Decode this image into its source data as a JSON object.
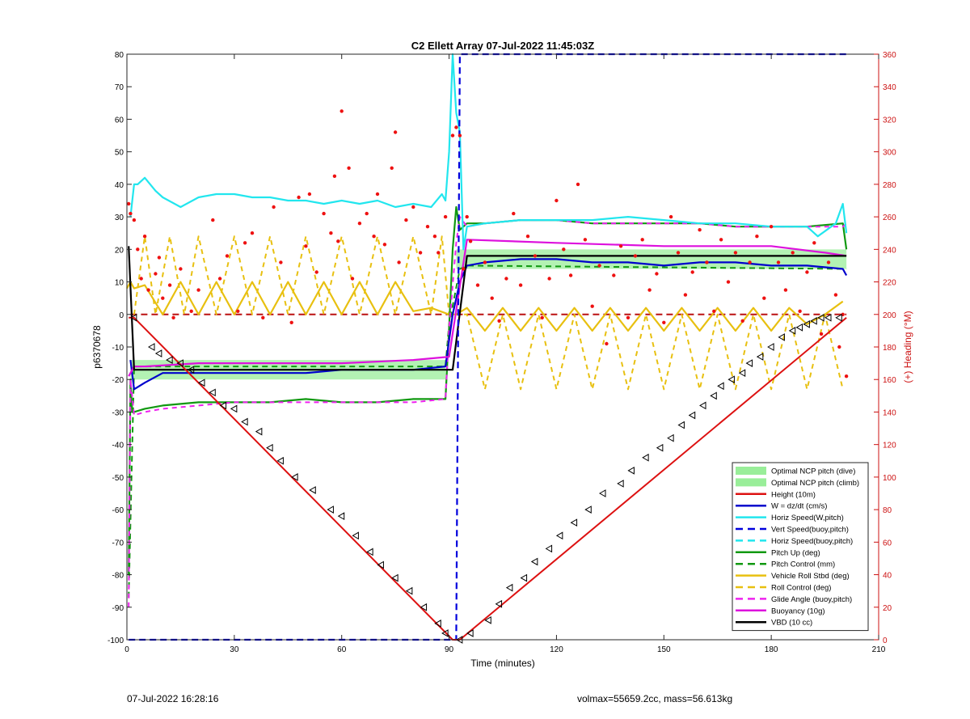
{
  "chart_data": {
    "type": "line",
    "title": "C2 Ellett Array 07-Jul-2022 11:45:03Z",
    "xlabel": "Time (minutes)",
    "ylabel": "p6370678",
    "y2label": "(+) Heading (°M)",
    "xlim": [
      0,
      210
    ],
    "ylim": [
      -100,
      80
    ],
    "y2lim": [
      0,
      360
    ],
    "xticks": [
      0,
      30,
      60,
      90,
      120,
      150,
      180,
      210
    ],
    "yticks": [
      80,
      70,
      60,
      50,
      40,
      30,
      20,
      10,
      0,
      -10,
      -20,
      -30,
      -40,
      -50,
      -60,
      -70,
      -80,
      -90,
      -100
    ],
    "y2ticks": [
      360,
      340,
      320,
      300,
      280,
      260,
      240,
      220,
      200,
      180,
      160,
      140,
      120,
      100,
      80,
      60,
      40,
      20,
      0
    ],
    "grid": false,
    "legend_position": "lower-right",
    "colors": {
      "height": "#dd1111",
      "w": "#0000cc",
      "horiz": "#22e6ee",
      "vert": "#0000dd",
      "pitch": "#119911",
      "roll": "#e8c010",
      "glide": "#ee22ee",
      "buoy": "#dd11dd",
      "vbd": "#000000",
      "ncp": "#99ee99",
      "heading": "#ee1111",
      "axis_right": "#cc1111"
    },
    "legend": [
      {
        "label": "Optimal NCP pitch (dive)",
        "kind": "patch",
        "color": "#99ee99"
      },
      {
        "label": "Optimal NCP pitch (climb)",
        "kind": "patch",
        "color": "#99ee99"
      },
      {
        "label": "Height (10m)",
        "kind": "solid",
        "color": "#dd1111"
      },
      {
        "label": "W = dz/dt (cm/s)",
        "kind": "solid",
        "color": "#0000cc"
      },
      {
        "label": "Horiz Speed(W,pitch)",
        "kind": "solid",
        "color": "#22e6ee"
      },
      {
        "label": "Vert Speed(buoy,pitch)",
        "kind": "dashed",
        "color": "#0000dd"
      },
      {
        "label": "Horiz Speed(buoy,pitch)",
        "kind": "dashed",
        "color": "#22e6ee"
      },
      {
        "label": "Pitch Up (deg)",
        "kind": "solid",
        "color": "#119911"
      },
      {
        "label": "Pitch Control (mm)",
        "kind": "dashed",
        "color": "#119911"
      },
      {
        "label": "Vehicle Roll Stbd (deg)",
        "kind": "solid",
        "color": "#e8c010"
      },
      {
        "label": "Roll Control (deg)",
        "kind": "dashed",
        "color": "#e8c010"
      },
      {
        "label": "Glide Angle (buoy,pitch)",
        "kind": "dashed",
        "color": "#ee22ee"
      },
      {
        "label": "Buoyancy (10g)",
        "kind": "solid",
        "color": "#dd11dd"
      },
      {
        "label": "VBD (10 cc)",
        "kind": "solid",
        "color": "#000000"
      }
    ],
    "series": {
      "height": {
        "x": [
          0.5,
          2,
          91,
          93,
          201
        ],
        "y": [
          -1,
          -1,
          -100,
          -100,
          -1
        ]
      },
      "height_markers": {
        "x": [
          2,
          7,
          9,
          12,
          15,
          18,
          21,
          24,
          27,
          30,
          33,
          37,
          40,
          43,
          47,
          52,
          57,
          60,
          64,
          68,
          71,
          75,
          79,
          83,
          87,
          89,
          93,
          96,
          101,
          104,
          107,
          111,
          114,
          118,
          121,
          125,
          129,
          133,
          138,
          141,
          145,
          149,
          152,
          155,
          158,
          161,
          164,
          166,
          169,
          172,
          174,
          177,
          180,
          183,
          186,
          188,
          190,
          192,
          194,
          196,
          199
        ],
        "y": [
          -1,
          -10,
          -12,
          -14,
          -15,
          -17,
          -21,
          -24,
          -28,
          -29,
          -33,
          -36,
          -41,
          -45,
          -50,
          -54,
          -60,
          -62,
          -68,
          -73,
          -77,
          -81,
          -85,
          -90,
          -95,
          -98,
          -100,
          -98,
          -94,
          -89,
          -84,
          -81,
          -76,
          -72,
          -68,
          -64,
          -60,
          -55,
          -52,
          -48,
          -44,
          -41,
          -38,
          -34,
          -31,
          -28,
          -25,
          -22,
          -20,
          -18,
          -15,
          -13,
          -10,
          -7,
          -5,
          -4,
          -3,
          -2,
          -1,
          -1,
          -1
        ]
      },
      "w": {
        "x": [
          1,
          2,
          5,
          10,
          20,
          30,
          40,
          50,
          60,
          70,
          80,
          89,
          91,
          93,
          95,
          100,
          110,
          120,
          130,
          140,
          150,
          160,
          170,
          180,
          190,
          200,
          201
        ],
        "y": [
          -14,
          -23,
          -21,
          -18,
          -18,
          -18,
          -18,
          -18,
          -17,
          -17,
          -17,
          -16,
          0,
          10,
          15,
          16,
          17,
          17,
          16,
          16,
          15,
          16,
          16,
          15,
          15,
          14,
          12
        ]
      },
      "horiz_speed": {
        "x": [
          1,
          2,
          3,
          5,
          8,
          10,
          15,
          20,
          25,
          30,
          35,
          40,
          45,
          50,
          55,
          60,
          65,
          70,
          75,
          80,
          85,
          88,
          89,
          90,
          91,
          92,
          93,
          94,
          95,
          100,
          110,
          120,
          130,
          140,
          150,
          160,
          170,
          180,
          190,
          193,
          198,
          200,
          201
        ],
        "y": [
          30,
          40,
          40,
          42,
          38,
          36,
          33,
          36,
          37,
          37,
          36,
          36,
          35,
          35,
          34,
          35,
          34,
          35,
          33,
          34,
          33,
          37,
          35,
          50,
          80,
          62,
          56,
          20,
          27,
          28,
          29,
          29,
          29,
          30,
          29,
          28,
          28,
          27,
          27,
          24,
          28,
          34,
          25
        ]
      },
      "vert_speed": {
        "x": [
          0.5,
          92,
          93,
          201
        ],
        "y": [
          -100,
          -100,
          80,
          80
        ]
      },
      "pitch_up": {
        "x": [
          0.5,
          1,
          1.5,
          2,
          5,
          10,
          20,
          30,
          40,
          50,
          60,
          70,
          80,
          89,
          90,
          91,
          92,
          93,
          95,
          100,
          110,
          120,
          130,
          140,
          150,
          160,
          170,
          180,
          190,
          200,
          201
        ],
        "y": [
          -80,
          -20,
          -30,
          -30,
          -29,
          -28,
          -27,
          -27,
          -27,
          -26,
          -27,
          -27,
          -26,
          -26,
          -4,
          20,
          33,
          26,
          28,
          28,
          29,
          29,
          28,
          28,
          28,
          28,
          27,
          27,
          27,
          28,
          20
        ]
      },
      "pitch_control": {
        "x": [
          0.5,
          2,
          89,
          90,
          93,
          95,
          201
        ],
        "y": [
          -87,
          -16,
          -16,
          -3,
          14,
          15,
          14
        ]
      },
      "roll_stbd": {
        "x": [
          0,
          1,
          2,
          5,
          10,
          15,
          20,
          25,
          30,
          35,
          40,
          45,
          50,
          55,
          60,
          65,
          70,
          75,
          80,
          85,
          90,
          92,
          95,
          100,
          105,
          110,
          115,
          120,
          125,
          130,
          135,
          140,
          145,
          150,
          155,
          160,
          165,
          170,
          175,
          180,
          185,
          190,
          195,
          200
        ],
        "y": [
          8,
          10,
          8,
          9,
          0,
          10,
          0,
          10,
          0,
          10,
          0,
          10,
          0,
          10,
          0,
          10,
          0,
          10,
          1,
          2,
          0,
          0,
          2,
          -5,
          2,
          -5,
          2,
          -5,
          2,
          -5,
          2,
          -5,
          2,
          -5,
          2,
          -5,
          2,
          -5,
          2,
          -5,
          2,
          -3,
          0,
          4
        ]
      },
      "roll_control": {
        "x": [
          2,
          5,
          8,
          12,
          16,
          20,
          25,
          30,
          35,
          40,
          45,
          50,
          55,
          60,
          65,
          70,
          75,
          80,
          85,
          88,
          90,
          95,
          100,
          105,
          110,
          115,
          120,
          125,
          130,
          135,
          140,
          145,
          150,
          155,
          160,
          165,
          170,
          175,
          180,
          185,
          190,
          195,
          200
        ],
        "y": [
          0,
          24,
          0,
          24,
          0,
          24,
          0,
          24,
          0,
          24,
          0,
          24,
          0,
          24,
          0,
          24,
          0,
          24,
          0,
          24,
          0,
          0,
          -23,
          0,
          -23,
          0,
          -23,
          0,
          -23,
          0,
          -23,
          0,
          -23,
          0,
          -23,
          0,
          -23,
          0,
          -23,
          0,
          -23,
          0,
          -23
        ]
      },
      "glide_angle": {
        "x": [
          0.5,
          1,
          2,
          5,
          10,
          20,
          30,
          40,
          50,
          60,
          70,
          80,
          89,
          90,
          92,
          93,
          95,
          100,
          110,
          120,
          130,
          140,
          150,
          160,
          170,
          180,
          190,
          200,
          201
        ],
        "y": [
          -90,
          -20,
          -31,
          -30,
          -29,
          -28,
          -27,
          -27,
          -27,
          -27,
          -27,
          -27,
          -26,
          -4,
          22,
          30,
          27,
          28,
          29,
          29,
          28,
          28,
          28,
          28,
          27,
          27,
          27,
          27,
          28
        ]
      },
      "buoyancy": {
        "x": [
          0.5,
          2,
          5,
          20,
          40,
          60,
          80,
          90,
          95,
          120,
          150,
          180,
          195,
          201
        ],
        "y": [
          -19,
          -16,
          -16,
          -15,
          -15,
          -15,
          -14,
          -13,
          23,
          22,
          21,
          21,
          19,
          18
        ]
      },
      "vbd": {
        "x": [
          0.5,
          2,
          89,
          91,
          95,
          201
        ],
        "y": [
          21,
          -17,
          -17,
          -17,
          18,
          18
        ]
      },
      "ncp_dive": {
        "x": [
          1,
          89
        ],
        "y_low": [
          -20,
          -20
        ],
        "y_high": [
          -14,
          -14
        ]
      },
      "ncp_climb": {
        "x": [
          92,
          201
        ],
        "y_low": [
          14,
          14
        ],
        "y_high": [
          20,
          20
        ]
      },
      "heading_points": {
        "x": [
          0.5,
          1,
          2,
          3,
          4,
          5,
          6,
          8,
          9,
          10,
          12,
          13,
          15,
          18,
          20,
          24,
          26,
          28,
          31,
          33,
          35,
          38,
          41,
          43,
          46,
          48,
          50,
          51,
          53,
          55,
          57,
          58,
          59,
          60,
          62,
          63,
          65,
          67,
          69,
          70,
          72,
          74,
          75,
          76,
          78,
          80,
          82,
          84,
          86,
          87,
          89,
          91,
          92,
          93,
          94,
          95,
          96,
          98,
          100,
          102,
          104,
          106,
          108,
          110,
          112,
          114,
          116,
          118,
          120,
          122,
          124,
          126,
          128,
          130,
          132,
          134,
          136,
          138,
          140,
          142,
          144,
          146,
          148,
          150,
          152,
          154,
          156,
          158,
          160,
          162,
          164,
          166,
          168,
          170,
          172,
          174,
          176,
          178,
          180,
          182,
          184,
          186,
          188,
          190,
          192,
          194,
          196,
          198,
          199,
          200,
          201
        ],
        "y": [
          268,
          262,
          258,
          240,
          222,
          248,
          215,
          225,
          235,
          210,
          218,
          198,
          228,
          202,
          215,
          258,
          222,
          236,
          202,
          244,
          250,
          198,
          266,
          232,
          195,
          272,
          242,
          274,
          226,
          262,
          250,
          285,
          245,
          325,
          290,
          222,
          256,
          262,
          248,
          274,
          243,
          290,
          312,
          232,
          258,
          266,
          238,
          254,
          248,
          238,
          260,
          310,
          315,
          310,
          228,
          260,
          245,
          218,
          232,
          210,
          196,
          222,
          262,
          218,
          248,
          236,
          198,
          222,
          270,
          240,
          224,
          280,
          246,
          205,
          230,
          182,
          224,
          242,
          198,
          236,
          246,
          215,
          225,
          195,
          260,
          238,
          212,
          226,
          252,
          232,
          202,
          246,
          220,
          238,
          196,
          232,
          248,
          210,
          254,
          232,
          215,
          238,
          202,
          226,
          244,
          188,
          232,
          212,
          180,
          200,
          162
        ]
      }
    }
  },
  "footer": {
    "left": "07-Jul-2022 16:28:16",
    "right": "volmax=55659.2cc, mass=56.613kg"
  }
}
